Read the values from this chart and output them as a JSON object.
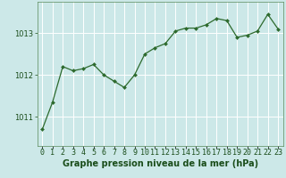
{
  "x": [
    0,
    1,
    2,
    3,
    4,
    5,
    6,
    7,
    8,
    9,
    10,
    11,
    12,
    13,
    14,
    15,
    16,
    17,
    18,
    19,
    20,
    21,
    22,
    23
  ],
  "y": [
    1010.7,
    1011.35,
    1012.2,
    1012.1,
    1012.15,
    1012.25,
    1012.0,
    1011.85,
    1011.7,
    1012.0,
    1012.5,
    1012.65,
    1012.75,
    1013.05,
    1013.12,
    1013.12,
    1013.2,
    1013.35,
    1013.3,
    1012.9,
    1012.95,
    1013.05,
    1013.45,
    1013.1
  ],
  "line_color": "#2d6a2d",
  "marker_color": "#2d6a2d",
  "bg_color": "#cce8e8",
  "grid_color": "#b8d8d8",
  "xlabel": "Graphe pression niveau de la mer (hPa)",
  "xlabel_color": "#1a4d1a",
  "tick_label_color": "#1a4d1a",
  "ylim": [
    1010.3,
    1013.75
  ],
  "yticks": [
    1011,
    1012,
    1013
  ],
  "xlim": [
    -0.5,
    23.5
  ],
  "label_fontsize": 7.0,
  "tick_fontsize": 6.0
}
